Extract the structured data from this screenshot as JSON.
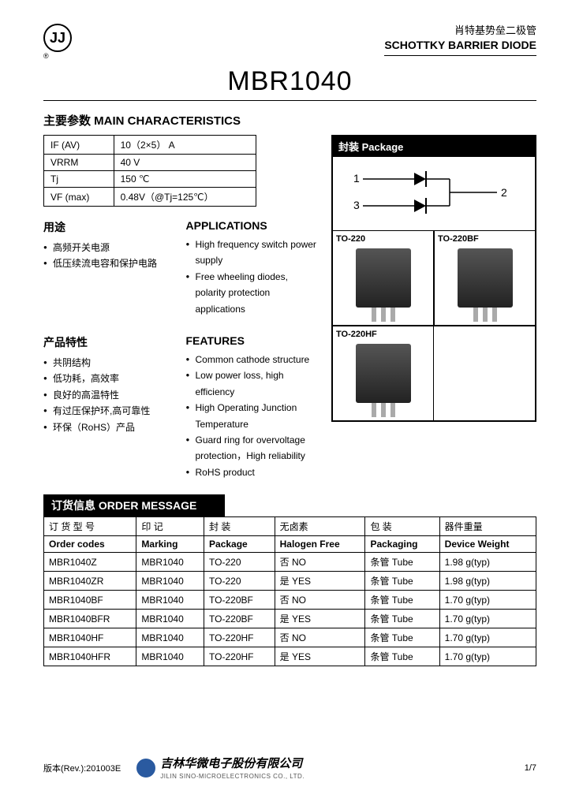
{
  "header": {
    "zh": "肖特基势垒二极管",
    "en": "SCHOTTKY BARRIER DIODE",
    "part_number": "MBR1040"
  },
  "main_char": {
    "title": "主要参数   MAIN   CHARACTERISTICS",
    "rows": [
      {
        "param": "IF (AV)",
        "value": "10（2×5） A"
      },
      {
        "param": "VRRM",
        "value": "40 V"
      },
      {
        "param": "Tj",
        "value": "150 ℃"
      },
      {
        "param": "VF (max)",
        "value": "0.48V（@Tj=125℃）"
      }
    ]
  },
  "package": {
    "title": "封装 Package",
    "pins": {
      "p1": "1",
      "p2": "2",
      "p3": "3"
    },
    "types": [
      "TO-220",
      "TO-220BF",
      "TO-220HF"
    ]
  },
  "applications": {
    "zh_title": "用途",
    "en_title": "APPLICATIONS",
    "zh_items": [
      "高频开关电源",
      "低压续流电容和保护电路"
    ],
    "en_items": [
      "High frequency switch power supply",
      "Free wheeling diodes, polarity protection applications"
    ]
  },
  "features": {
    "zh_title": "产品特性",
    "en_title": "FEATURES",
    "zh_items": [
      "共阴结构",
      "低功耗，高效率",
      "良好的高温特性",
      "有过压保护环,高可靠性",
      "环保（RoHS）产品"
    ],
    "en_items": [
      "Common cathode structure",
      "Low power loss, high efficiency",
      "High Operating Junction Temperature",
      "Guard ring for overvoltage protection，High reliability",
      "RoHS product"
    ]
  },
  "order": {
    "title": "订货信息  ORDER MESSAGE",
    "headers_zh": [
      "订 货 型 号",
      "印    记",
      "封    装",
      "无卤素",
      "包    装",
      "器件重量"
    ],
    "headers_en": [
      "Order codes",
      "Marking",
      "Package",
      "Halogen Free",
      "Packaging",
      "Device Weight"
    ],
    "rows": [
      [
        "MBR1040Z",
        "MBR1040",
        "TO-220",
        "否   NO",
        "条管 Tube",
        "1.98 g(typ)"
      ],
      [
        "MBR1040ZR",
        "MBR1040",
        "TO-220",
        "是   YES",
        "条管 Tube",
        "1.98 g(typ)"
      ],
      [
        "MBR1040BF",
        "MBR1040",
        "TO-220BF",
        "否   NO",
        "条管 Tube",
        "1.70 g(typ)"
      ],
      [
        "MBR1040BFR",
        "MBR1040",
        "TO-220BF",
        "是   YES",
        "条管 Tube",
        "1.70 g(typ)"
      ],
      [
        "MBR1040HF",
        "MBR1040",
        "TO-220HF",
        "否   NO",
        "条管 Tube",
        "1.70 g(typ)"
      ],
      [
        "MBR1040HFR",
        "MBR1040",
        "TO-220HF",
        "是   YES",
        "条管 Tube",
        "1.70 g(typ)"
      ]
    ]
  },
  "footer": {
    "rev": "版本(Rev.):201003E",
    "company_zh": "吉林华微电子股份有限公司",
    "company_en": "JILIN SINO-MICROELECTRONICS CO., LTD.",
    "page": "1/7"
  }
}
